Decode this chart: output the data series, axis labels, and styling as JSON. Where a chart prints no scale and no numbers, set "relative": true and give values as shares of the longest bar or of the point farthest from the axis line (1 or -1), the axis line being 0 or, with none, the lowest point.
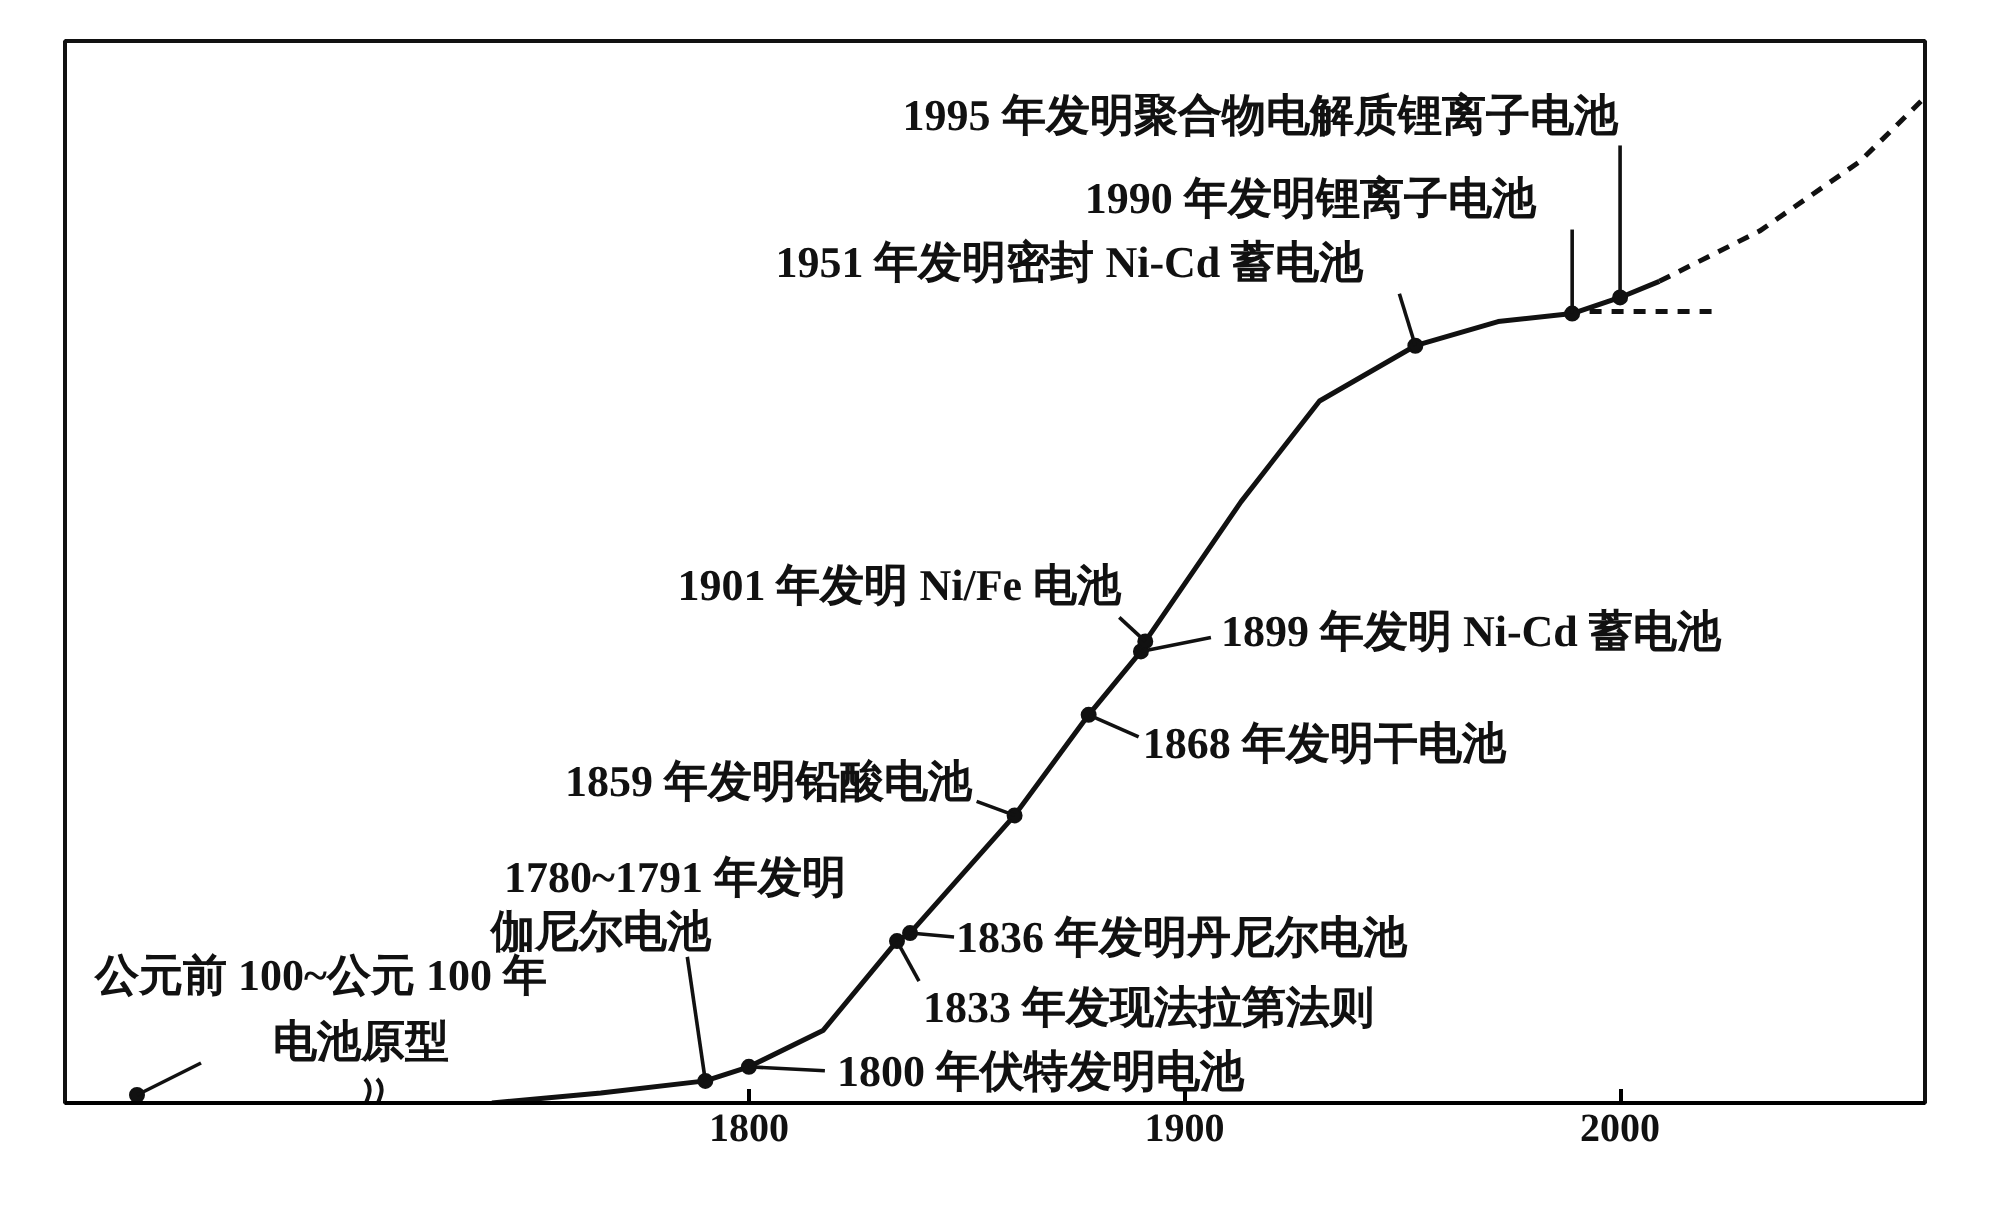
{
  "chart_data": {
    "type": "line",
    "relative": true,
    "xlim": [
      1643,
      2070
    ],
    "xticks": [
      1800,
      1900,
      2000
    ],
    "grid": false,
    "series": [
      {
        "color": "#111111",
        "line_style": "solid",
        "x": [
          1741,
          1766,
          1790,
          1800,
          1817,
          1834,
          1837,
          1861,
          1878,
          1890,
          1891,
          1913,
          1931,
          1953,
          1972,
          1989,
          2000,
          2009
        ],
        "values": [
          0,
          0.01,
          0.022,
          0.036,
          0.072,
          0.161,
          0.169,
          0.286,
          0.386,
          0.449,
          0.459,
          0.598,
          0.698,
          0.753,
          0.777,
          0.785,
          0.801,
          0.817
        ]
      },
      {
        "color": "#111111",
        "line_style": "dashed",
        "x": [
          2009,
          2032,
          2055,
          2070
        ],
        "values": [
          0.817,
          0.867,
          0.936,
          1.0
        ]
      },
      {
        "color": "#111111",
        "line_style": "dashed",
        "x": [
          1993,
          2021
        ],
        "values": [
          0.787,
          0.787
        ]
      },
      {
        "type": "scatter",
        "color": "#111111",
        "marker": "circle",
        "x": [
          1790,
          1800,
          1834,
          1837,
          1861,
          1878,
          1890,
          1891,
          1953,
          1989,
          2000
        ],
        "values": [
          0.022,
          0.036,
          0.161,
          0.169,
          0.286,
          0.386,
          0.449,
          0.459,
          0.753,
          0.785,
          0.801
        ]
      }
    ],
    "annotations": [
      {
        "text": "1995 年发明聚合物电解质锂离子电池",
        "x": 2000,
        "y": 0.801
      },
      {
        "text": "1990 年发明锂离子电池",
        "x": 1989,
        "y": 0.785
      },
      {
        "text": "1951 年发明密封 Ni-Cd 蓄电池",
        "x": 1953,
        "y": 0.753
      },
      {
        "text": "1901 年发明 Ni/Fe 电池",
        "x": 1891,
        "y": 0.459
      },
      {
        "text": "1899 年发明 Ni-Cd 蓄电池",
        "x": 1890,
        "y": 0.449
      },
      {
        "text": "1868 年发明干电池",
        "x": 1878,
        "y": 0.386
      },
      {
        "text": "1859 年发明铅酸电池",
        "x": 1861,
        "y": 0.286
      },
      "1780~1791 年发明",
      {
        "text": "伽尼尔电池",
        "x": 1790,
        "y": 0.022
      },
      {
        "text": "1836 年发明丹尼尔电池",
        "x": 1837,
        "y": 0.169
      },
      {
        "text": "1833 年发现法拉第法则",
        "x": 1834,
        "y": 0.161
      },
      {
        "text": "1800 年伏特发明电池",
        "x": 1800,
        "y": 0.036
      },
      "公元前 100~公元 100 年",
      "电池原型"
    ]
  }
}
